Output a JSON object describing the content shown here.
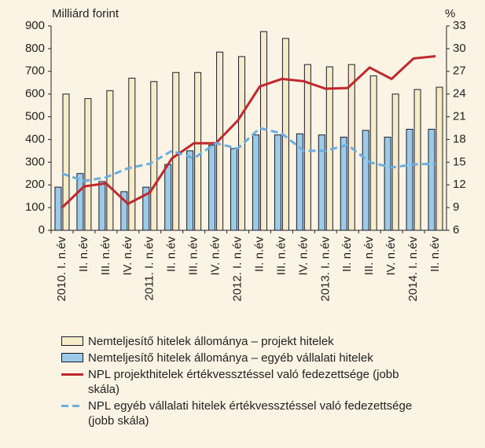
{
  "chart_data": {
    "type": "bar-line",
    "y_label": "Milliárd forint",
    "y2_label": "%",
    "categories": [
      "2010. I. n.év",
      "II. n.év",
      "III. n.év",
      "IV. n.év",
      "2011. I. n.év",
      "II. n.év",
      "III. n.év",
      "IV. n.év",
      "2012. I. n.év",
      "II. n.év",
      "III. n.év",
      "IV. n.év",
      "2013. I. n.év",
      "II. n.év",
      "III. n.év",
      "IV. n.év",
      "2014. I. n.év",
      "II. n.év"
    ],
    "series": [
      {
        "name": "Nemteljesítő hitelek állománya – projekt hitelek",
        "kind": "bar",
        "color": "#f6ecc8",
        "values": [
          600,
          580,
          615,
          670,
          655,
          695,
          695,
          785,
          765,
          875,
          845,
          730,
          720,
          730,
          680,
          600,
          620,
          630
        ]
      },
      {
        "name": "Nemteljesítő hitelek állománya – egyéb vállalati hitelek",
        "kind": "bar",
        "color": "#9ccbe8",
        "values": [
          190,
          250,
          215,
          170,
          190,
          290,
          350,
          375,
          360,
          420,
          420,
          425,
          420,
          410,
          440,
          410,
          445,
          445
        ]
      },
      {
        "name": "NPL projekthitelek értékvesszté­ssel való fedezettsége (jobb skála)",
        "kind": "line",
        "axis": "y2",
        "color": "#c0282d",
        "dashed": false,
        "values": [
          9,
          11.8,
          12.2,
          9.5,
          11,
          15.5,
          17.5,
          17.5,
          20.5,
          25,
          26,
          25.7,
          24.7,
          24.8,
          27.5,
          26,
          28.7,
          29
        ]
      },
      {
        "name": "NPL egyéb vállalati hitelek értékvesszté­ssel való fedezettsége (jobb skála)",
        "kind": "line",
        "axis": "y2",
        "color": "#6aaee0",
        "dashed": true,
        "values": [
          13.5,
          12.5,
          13,
          14.2,
          14.8,
          16.5,
          15.5,
          17.5,
          16.8,
          19.5,
          18.8,
          16.5,
          16.5,
          17.3,
          15,
          14.3,
          14.7,
          14.8
        ]
      }
    ],
    "ylim": [
      0,
      900
    ],
    "yticks": [
      0,
      100,
      200,
      300,
      400,
      500,
      600,
      700,
      800,
      900
    ],
    "y2lim": [
      6,
      33
    ],
    "y2ticks": [
      6,
      9,
      12,
      15,
      18,
      21,
      24,
      27,
      30,
      33
    ],
    "grid": false
  }
}
